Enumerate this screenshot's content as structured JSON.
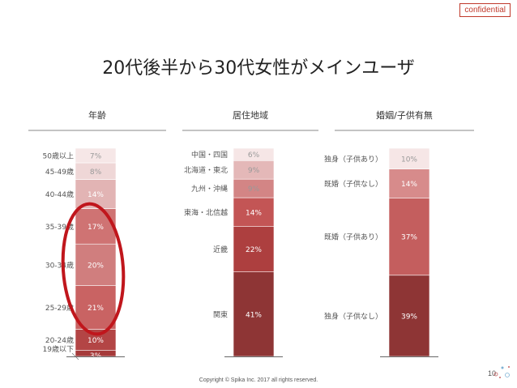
{
  "badge": "confidential",
  "title": "20代後半から30代女性がメインユーザ",
  "footer": "Copyright © Spika Inc. 2017 all rights reserved.",
  "page_number": "10",
  "colors": {
    "base_light": "#f3e2e2",
    "dark": "#8e3535",
    "highlight": "#c0161c"
  },
  "chart_data": [
    {
      "type": "bar",
      "stacked": true,
      "title": "年齢",
      "categories": [
        "19歳以下",
        "20-24歳",
        "25-29歳",
        "30-34歳",
        "35-39歳",
        "40-44歳",
        "45-49歳",
        "50歳以上"
      ],
      "values": [
        3,
        10,
        21,
        20,
        17,
        14,
        8,
        7
      ],
      "labels": [
        "3%",
        "10%",
        "21%",
        "20%",
        "17%",
        "14%",
        "8%",
        "7%"
      ],
      "colors": [
        "#a53a3a",
        "#b34545",
        "#c96363",
        "#d07e7e",
        "#cf7373",
        "#e2b4b4",
        "#efd7d7",
        "#f6e7e7"
      ],
      "highlight": [
        "25-29歳",
        "30-34歳",
        "35-39歳"
      ]
    },
    {
      "type": "bar",
      "stacked": true,
      "title": "居住地域",
      "categories": [
        "関東",
        "近畿",
        "東海・北信越",
        "九州・沖縄",
        "北海道・東北",
        "中国・四国"
      ],
      "values": [
        41,
        22,
        14,
        9,
        9,
        6
      ],
      "labels": [
        "41%",
        "22%",
        "14%",
        "9%",
        "9%",
        "6%"
      ],
      "colors": [
        "#8e3535",
        "#ad3f3f",
        "#c35555",
        "#d38585",
        "#e4b8b8",
        "#f6e6e6"
      ]
    },
    {
      "type": "bar",
      "stacked": true,
      "title": "婚姻/子供有無",
      "categories": [
        "独身（子供なし）",
        "既婚（子供あり）",
        "既婚（子供なし）",
        "独身（子供あり）"
      ],
      "values": [
        39,
        37,
        14,
        10
      ],
      "labels": [
        "39%",
        "37%",
        "14%",
        "10%"
      ],
      "colors": [
        "#8e3535",
        "#c45e5e",
        "#d78b8b",
        "#f6e6e6"
      ]
    }
  ]
}
